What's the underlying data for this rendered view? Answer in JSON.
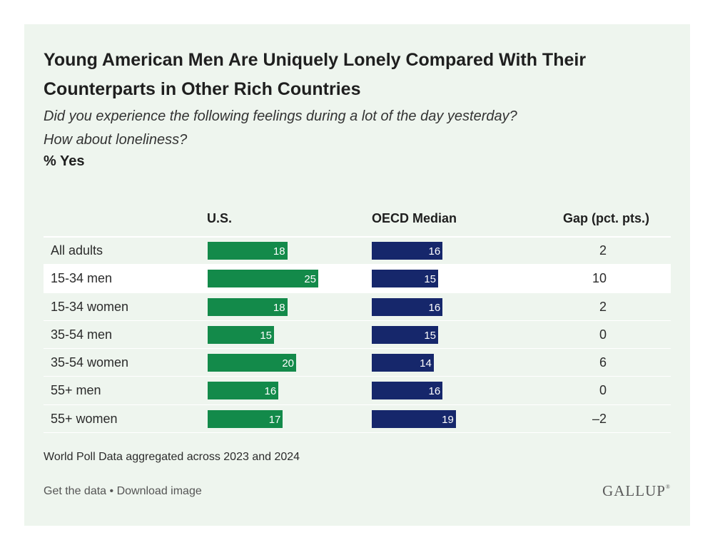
{
  "chart_data": {
    "type": "bar",
    "title": "Young American Men Are Uniquely Lonely Compared With Their Counterparts in Other Rich Countries",
    "subtitle_lines": [
      "Did you experience the following feelings during a lot of the day yesterday?",
      "How about loneliness?"
    ],
    "unit_label": "% Yes",
    "columns": {
      "us": "U.S.",
      "oecd": "OECD Median",
      "gap": "Gap (pct. pts.)"
    },
    "categories": [
      "All adults",
      "15-34 men",
      "15-34 women",
      "35-54 men",
      "35-54 women",
      "55+ men",
      "55+ women"
    ],
    "series": [
      {
        "name": "U.S.",
        "values": [
          18,
          25,
          18,
          15,
          20,
          16,
          17
        ],
        "color": "#138a4a"
      },
      {
        "name": "OECD Median",
        "values": [
          16,
          15,
          16,
          15,
          14,
          16,
          19
        ],
        "color": "#16276b"
      }
    ],
    "gap_values": [
      "2",
      "10",
      "2",
      "0",
      "6",
      "0",
      "–2"
    ],
    "highlighted_category": "15-34 men"
  },
  "note": "World Poll Data aggregated across 2023 and 2024",
  "footer": {
    "get_data": "Get the data",
    "separator": " • ",
    "download": "Download image"
  },
  "brand": {
    "name": "GALLUP",
    "mark": "®"
  }
}
